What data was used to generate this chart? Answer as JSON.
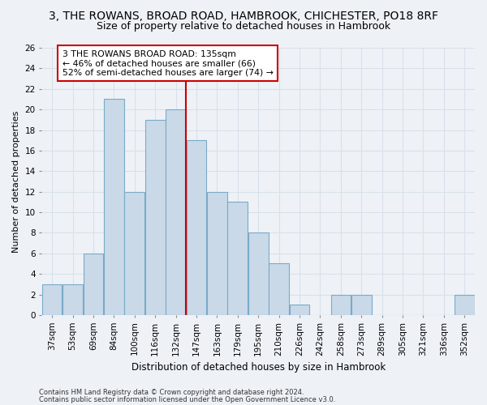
{
  "title_line1": "3, THE ROWANS, BROAD ROAD, HAMBROOK, CHICHESTER, PO18 8RF",
  "title_line2": "Size of property relative to detached houses in Hambrook",
  "xlabel": "Distribution of detached houses by size in Hambrook",
  "ylabel": "Number of detached properties",
  "categories": [
    "37sqm",
    "53sqm",
    "69sqm",
    "84sqm",
    "100sqm",
    "116sqm",
    "132sqm",
    "147sqm",
    "163sqm",
    "179sqm",
    "195sqm",
    "210sqm",
    "226sqm",
    "242sqm",
    "258sqm",
    "273sqm",
    "289sqm",
    "305sqm",
    "321sqm",
    "336sqm",
    "352sqm"
  ],
  "values": [
    3,
    3,
    6,
    21,
    12,
    19,
    20,
    17,
    12,
    11,
    8,
    5,
    1,
    0,
    2,
    2,
    0,
    0,
    0,
    0,
    2
  ],
  "bar_color": "#c9d9e8",
  "bar_edge_color": "#7aaac8",
  "vline_x_index": 6.5,
  "vline_color": "#cc0000",
  "annotation_text": "3 THE ROWANS BROAD ROAD: 135sqm\n← 46% of detached houses are smaller (66)\n52% of semi-detached houses are larger (74) →",
  "annotation_box_color": "#ffffff",
  "annotation_box_edge_color": "#cc0000",
  "ylim": [
    0,
    26
  ],
  "yticks": [
    0,
    2,
    4,
    6,
    8,
    10,
    12,
    14,
    16,
    18,
    20,
    22,
    24,
    26
  ],
  "footnote_line1": "Contains HM Land Registry data © Crown copyright and database right 2024.",
  "footnote_line2": "Contains public sector information licensed under the Open Government Licence v3.0.",
  "background_color": "#eef2f7",
  "grid_color": "#d8e0ea",
  "title_fontsize": 10,
  "subtitle_fontsize": 9,
  "axis_label_fontsize": 8,
  "tick_fontsize": 7.5,
  "bar_width": 0.97
}
